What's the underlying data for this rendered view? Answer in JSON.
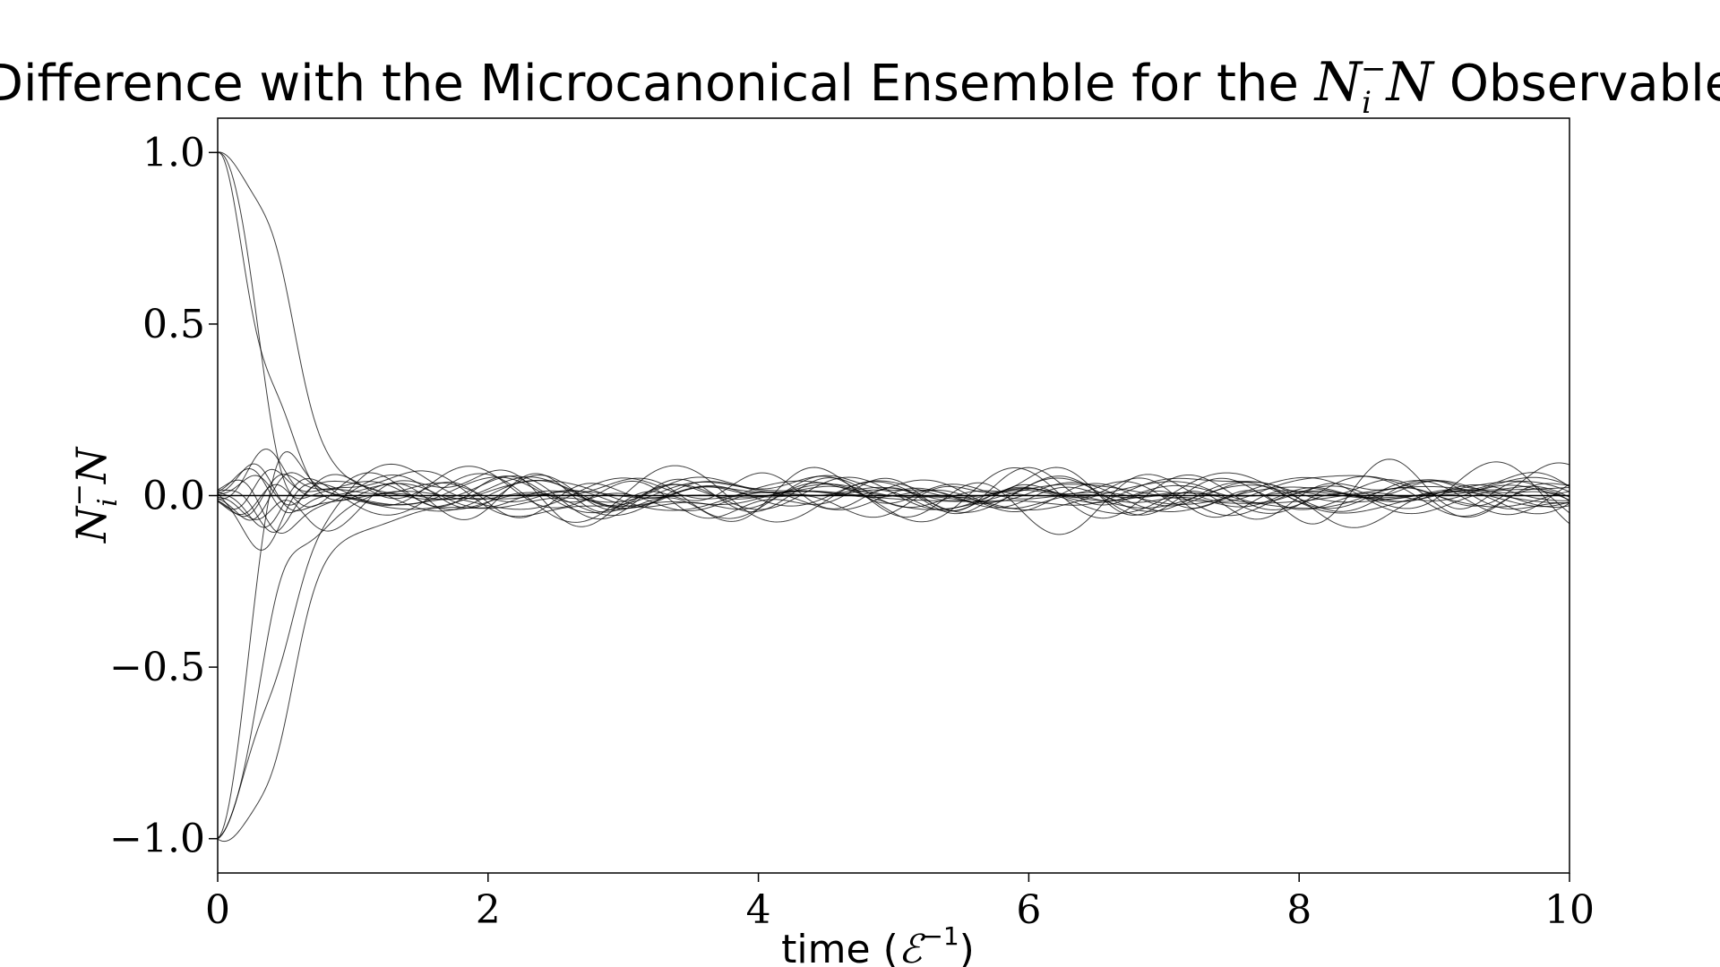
{
  "chart_data": {
    "type": "line",
    "title": {
      "prefix": "Difference with the Microcanonical Ensemble for the ",
      "symbol": "N",
      "symbol_sub": "i",
      "symbol_sup": "−",
      "symbol_tail": "N",
      "suffix": " Observable"
    },
    "xlabel": {
      "text": "time (",
      "symbol": "ℰ",
      "sup": "−1",
      "close": ")"
    },
    "ylabel": {
      "symbol": "N",
      "sub": "i",
      "sup": "−",
      "tail": "N"
    },
    "xlim": [
      0,
      10
    ],
    "ylim": [
      -1.1,
      1.1
    ],
    "xticks": [
      0,
      2,
      4,
      6,
      8,
      10
    ],
    "xtick_labels": [
      "0",
      "2",
      "4",
      "6",
      "8",
      "10"
    ],
    "yticks": [
      -1.0,
      -0.5,
      0.0,
      0.5,
      1.0
    ],
    "ytick_labels": [
      "−1.0",
      "−0.5",
      "0.0",
      "0.5",
      "1.0"
    ],
    "grid": false,
    "line_color": "#000000",
    "zero_line": true,
    "num_series": 20,
    "series_start_values": [
      1.0,
      1.0,
      1.0,
      -1.0,
      -1.0,
      -1.0,
      -1.0,
      0.0,
      0.0,
      0.0,
      0.0,
      0.0,
      0.0,
      0.0,
      0.0,
      0.0,
      0.0,
      0.0,
      0.0,
      0.0
    ],
    "series_decay_rates": [
      3.2,
      2.2,
      1.6,
      3.2,
      2.5,
      1.8,
      1.4,
      0,
      0,
      0,
      0,
      0,
      0,
      0,
      0,
      0,
      0,
      0,
      0,
      0
    ],
    "steady_fluctuation_amplitude": 0.05
  }
}
